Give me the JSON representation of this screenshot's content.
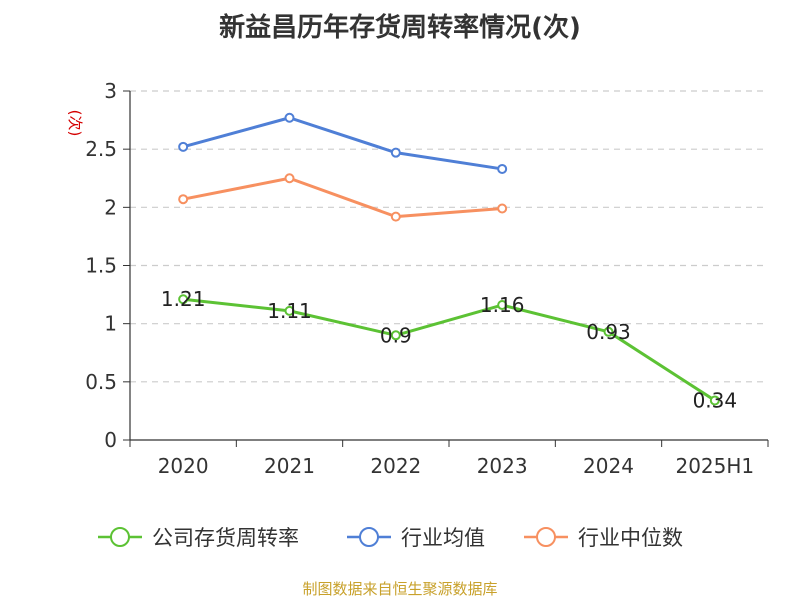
{
  "chart_data": {
    "type": "line",
    "title": "新益昌历年存货周转率情况(次)",
    "ylabel": "(次)",
    "categories": [
      "2020",
      "2021",
      "2022",
      "2023",
      "2024",
      "2025H1"
    ],
    "ylim": [
      0,
      3
    ],
    "yticks": [
      "0",
      "0.5",
      "1",
      "1.5",
      "2",
      "2.5",
      "3"
    ],
    "grid": true,
    "legend_position": "bottom",
    "series": [
      {
        "name": "公司存货周转率",
        "color": "#5cc234",
        "values": [
          1.21,
          1.11,
          0.9,
          1.16,
          0.93,
          0.34
        ],
        "labels": [
          "1.21",
          "1.11",
          "0.9",
          "1.16",
          "0.93",
          "0.34"
        ],
        "show_labels": true
      },
      {
        "name": "行业均值",
        "color": "#4f7fd6",
        "values": [
          2.52,
          2.77,
          2.47,
          2.33,
          null,
          null
        ],
        "show_labels": false
      },
      {
        "name": "行业中位数",
        "color": "#f79060",
        "values": [
          2.07,
          2.25,
          1.92,
          1.99,
          null,
          null
        ],
        "show_labels": false
      }
    ]
  },
  "source": "制图数据来自恒生聚源数据库"
}
